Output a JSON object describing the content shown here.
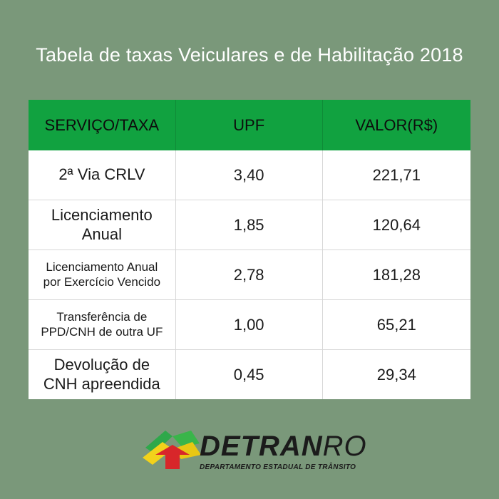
{
  "title": "Tabela de taxas Veiculares e de Habilitação 2018",
  "table": {
    "headers": [
      "SERVIÇO/TAXA",
      "UPF",
      "VALOR(R$)"
    ],
    "rows": [
      {
        "service_lines": [
          "2ª Via CRLV"
        ],
        "upf": "3,40",
        "valor": "221,71"
      },
      {
        "service_lines": [
          "Licenciamento",
          "Anual"
        ],
        "upf": "1,85",
        "valor": "120,64"
      },
      {
        "service_lines": [
          "Licenciamento Anual",
          "por Exercício Vencido"
        ],
        "upf": "2,78",
        "valor": "181,28"
      },
      {
        "service_lines": [
          "Transferência de",
          "PPD/CNH de outra UF"
        ],
        "upf": "1,00",
        "valor": "65,21"
      },
      {
        "service_lines": [
          "Devolução de",
          "CNH apreendida"
        ],
        "upf": "0,45",
        "valor": "29,34"
      }
    ]
  },
  "logo": {
    "name_main": "DETRAN",
    "name_suffix": "RO",
    "subtitle": "DEPARTAMENTO ESTADUAL DE TRÂNSITO",
    "icon": "detran-arrow-logo"
  },
  "colors": {
    "background": "#7a987a",
    "header_green": "#11a240",
    "cell_white": "#ffffff"
  }
}
